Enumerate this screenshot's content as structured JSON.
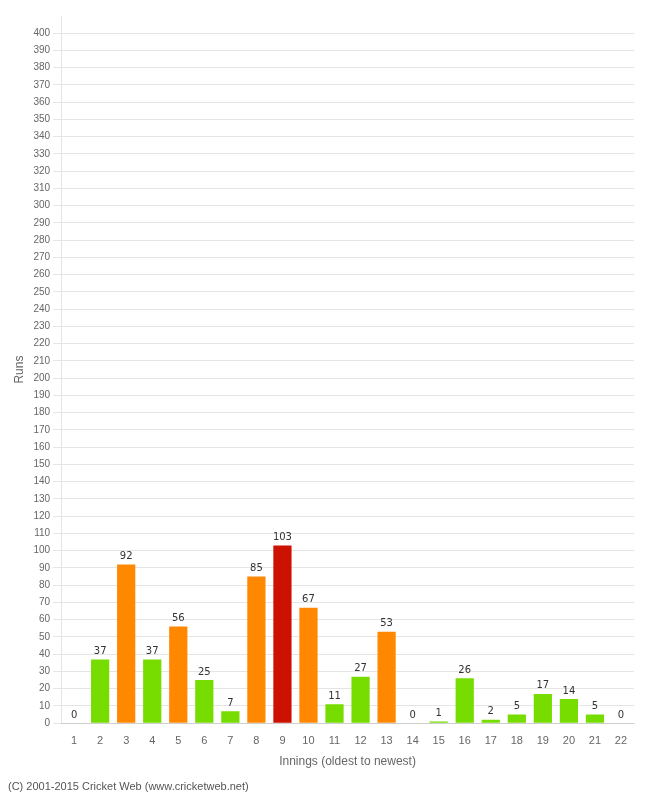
{
  "chart_data": {
    "type": "bar",
    "xlabel": "Innings (oldest to newest)",
    "ylabel": "Runs",
    "categories": [
      1,
      2,
      3,
      4,
      5,
      6,
      7,
      8,
      9,
      10,
      11,
      12,
      13,
      14,
      15,
      16,
      17,
      18,
      19,
      20,
      21,
      22
    ],
    "values": [
      0,
      37,
      92,
      37,
      56,
      25,
      7,
      85,
      103,
      67,
      11,
      27,
      53,
      0,
      1,
      26,
      2,
      5,
      17,
      14,
      5,
      0
    ],
    "colors": [
      "#77dd00",
      "#77dd00",
      "#ff8800",
      "#77dd00",
      "#ff8800",
      "#77dd00",
      "#77dd00",
      "#ff8800",
      "#cc1100",
      "#ff8800",
      "#77dd00",
      "#77dd00",
      "#ff8800",
      "#77dd00",
      "#77dd00",
      "#77dd00",
      "#77dd00",
      "#77dd00",
      "#77dd00",
      "#77dd00",
      "#77dd00",
      "#77dd00"
    ],
    "ylim": [
      0,
      410
    ],
    "yticks": [
      0,
      10,
      20,
      30,
      40,
      50,
      60,
      70,
      80,
      90,
      100,
      110,
      120,
      130,
      140,
      150,
      160,
      170,
      180,
      190,
      200,
      210,
      220,
      230,
      240,
      250,
      260,
      270,
      280,
      290,
      300,
      310,
      320,
      330,
      340,
      350,
      360,
      370,
      380,
      390,
      400
    ],
    "grid": "y",
    "data_labels": true,
    "footer": "(C) 2001-2015 Cricket Web (www.cricketweb.net)"
  }
}
